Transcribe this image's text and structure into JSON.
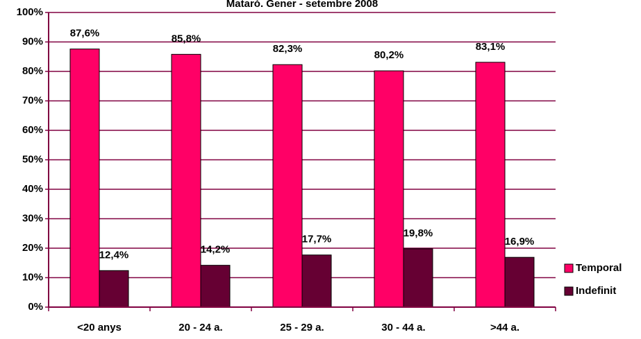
{
  "chart_data": {
    "type": "bar",
    "title": "Mataró. Gener - setembre 2008",
    "categories": [
      "<20 anys",
      "20 - 24 a.",
      "25 - 29 a.",
      "30 - 44 a.",
      ">44 a."
    ],
    "series": [
      {
        "name": "Temporal",
        "color": "#ff0066",
        "values": [
          87.6,
          85.8,
          82.3,
          80.2,
          83.1
        ],
        "value_labels": [
          "87,6%",
          "85,8%",
          "82,3%",
          "80,2%",
          "83,1%"
        ]
      },
      {
        "name": "Indefinit",
        "color": "#660033",
        "values": [
          12.4,
          14.2,
          17.7,
          19.8,
          16.9
        ],
        "value_labels": [
          "12,4%",
          "14,2%",
          "17,7%",
          "19,8%",
          "16,9%"
        ]
      }
    ],
    "ylim": [
      0,
      100
    ],
    "yticks": [
      {
        "value": 0,
        "label": "0%"
      },
      {
        "value": 10,
        "label": "10%"
      },
      {
        "value": 20,
        "label": "20%"
      },
      {
        "value": 30,
        "label": "30%"
      },
      {
        "value": 40,
        "label": "40%"
      },
      {
        "value": 50,
        "label": "50%"
      },
      {
        "value": 60,
        "label": "60%"
      },
      {
        "value": 70,
        "label": "70%"
      },
      {
        "value": 80,
        "label": "80%"
      },
      {
        "value": 90,
        "label": "90%"
      },
      {
        "value": 100,
        "label": "100%"
      }
    ],
    "grid": true,
    "legend": "right"
  }
}
